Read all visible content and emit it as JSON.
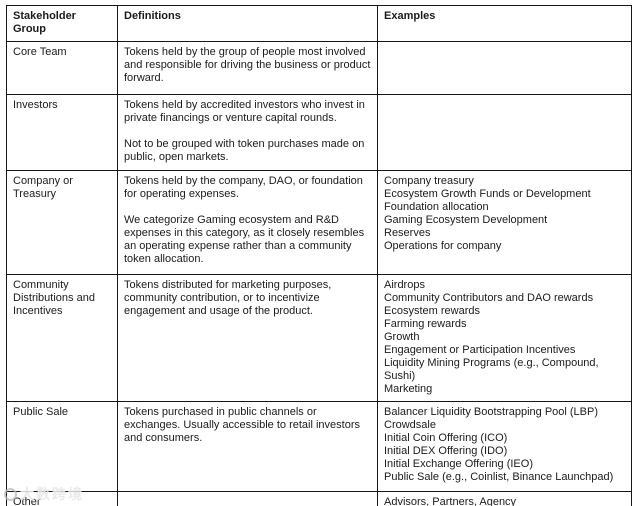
{
  "table": {
    "headers": [
      "Stakeholder Group",
      "Definitions",
      "Examples"
    ],
    "rows": [
      {
        "group": "Core Team",
        "definitions": [
          "Tokens held by the group of people most involved and responsible for driving the business or product forward."
        ],
        "examples": []
      },
      {
        "group": "Investors",
        "definitions": [
          "Tokens held by accredited investors who invest in private financings or venture capital rounds.",
          "Not to be grouped with token purchases made on public, open markets."
        ],
        "examples": []
      },
      {
        "group": "Company or Treasury",
        "definitions": [
          "Tokens held by the company, DAO, or foundation for operating expenses.",
          "We categorize Gaming ecosystem and R&D expenses in this category, as it closely resembles an operating expense rather than a community token allocation."
        ],
        "examples": [
          "Company treasury",
          "Ecosystem Growth Funds or Development",
          "Foundation allocation",
          "Gaming Ecosystem Development",
          "Reserves",
          "Operations for company"
        ]
      },
      {
        "group": "Community Distributions and Incentives",
        "definitions": [
          "Tokens distributed for marketing purposes, community contribution, or to incentivize engagement and usage of the product."
        ],
        "examples": [
          "Airdrops",
          "Community Contributors and DAO rewards",
          "Ecosystem rewards",
          "Farming rewards",
          "Growth",
          "Engagement or Participation Incentives",
          "Liquidity Mining Programs (e.g., Compound, Sushi)",
          "Marketing"
        ]
      },
      {
        "group": "Public Sale",
        "definitions": [
          "Tokens purchased in public channels or exchanges. Usually accessible to retail investors and consumers."
        ],
        "examples": [
          "Balancer Liquidity Bootstrapping Pool (LBP)",
          "Crowdsale",
          "Initial Coin Offering (ICO)",
          "Initial DEX Offering (IDO)",
          "Initial Exchange Offering (IEO)",
          "Public Sale (e.g., Coinlist, Binance Launchpad)"
        ]
      },
      {
        "group": "Other",
        "definitions": [],
        "examples": [
          "Advisors, Partners, Agency"
        ]
      }
    ]
  },
  "watermark": {
    "text": "大数跨境"
  },
  "colors": {
    "border": "#161616",
    "text": "#1b1b1b",
    "background": "#ffffff",
    "watermark": "#b9b9b9"
  }
}
